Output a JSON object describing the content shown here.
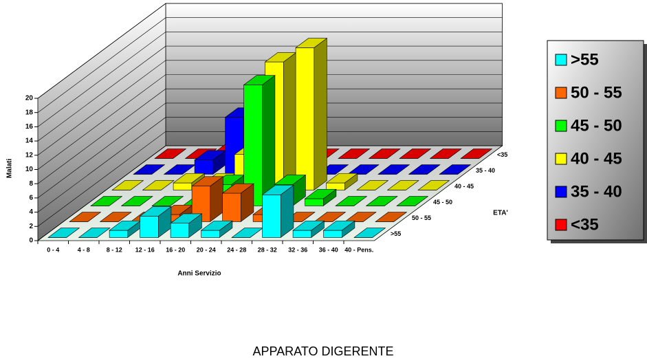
{
  "chart_data": {
    "type": "bar3d",
    "title": "APPARATO DIGERENTE",
    "y_label": "Malati",
    "x_label": "Anni Servizio",
    "z_label": "ETA'",
    "categories": [
      "0 - 4",
      "4 - 8",
      "8 - 12",
      "12 - 16",
      "16 - 20",
      "20 - 24",
      "24 - 28",
      "28 - 32",
      "32 - 36",
      "36 - 40",
      "40 - Pens."
    ],
    "series": [
      {
        "name": ">55",
        "color": "#00ffff",
        "values": [
          0,
          0,
          1,
          3,
          2,
          1,
          0,
          6,
          1,
          1,
          0
        ]
      },
      {
        "name": "50 - 55",
        "color": "#ff6600",
        "values": [
          0,
          0,
          0,
          1,
          5,
          4,
          1,
          0,
          0,
          0,
          0
        ]
      },
      {
        "name": "45 - 50",
        "color": "#00ff00",
        "values": [
          0,
          0,
          0,
          0,
          3,
          17,
          3,
          1,
          0,
          0,
          0
        ]
      },
      {
        "name": "40 - 45",
        "color": "#ffff00",
        "values": [
          0,
          0,
          1,
          1,
          5,
          18,
          20,
          1,
          0,
          0,
          0
        ]
      },
      {
        "name": "35 - 40",
        "color": "#0000ff",
        "values": [
          0,
          0,
          2,
          8,
          0,
          0,
          0,
          0,
          0,
          0,
          0
        ]
      },
      {
        "name": "<35",
        "color": "#ff0000",
        "values": [
          0,
          0,
          1,
          8,
          1,
          0,
          0,
          0,
          0,
          0,
          0
        ]
      }
    ],
    "ylim": [
      0,
      20
    ],
    "yticks": [
      0,
      2,
      4,
      6,
      8,
      10,
      12,
      14,
      16,
      18,
      20
    ],
    "grid": true,
    "legend": "right"
  }
}
